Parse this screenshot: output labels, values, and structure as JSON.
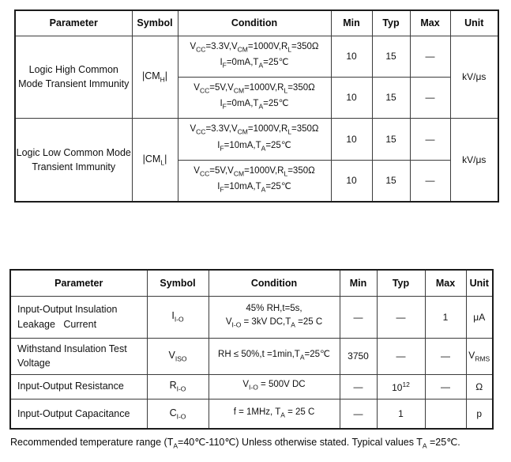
{
  "table1": {
    "headers": [
      "Parameter",
      "Symbol",
      "Condition",
      "Min",
      "Typ",
      "Max",
      "Unit"
    ],
    "groups": [
      {
        "parameter": "Logic High Common\nMode Transient Immunity",
        "symbol": [
          {
            "t": "|CM"
          },
          {
            "t": "H",
            "sub": true
          },
          {
            "t": "|"
          }
        ],
        "unit": "kV/μs",
        "subrows": [
          {
            "condition_line1": [
              {
                "t": "V"
              },
              {
                "t": "CC",
                "sub": true
              },
              {
                "t": "=3.3V,V"
              },
              {
                "t": "CM",
                "sub": true
              },
              {
                "t": "=1000V,R"
              },
              {
                "t": "L",
                "sub": true
              },
              {
                "t": "=350Ω"
              }
            ],
            "condition_line2": [
              {
                "t": "I"
              },
              {
                "t": "F",
                "sub": true
              },
              {
                "t": "=0mA,T"
              },
              {
                "t": "A",
                "sub": true
              },
              {
                "t": "=25℃"
              }
            ],
            "min": "10",
            "typ": "15",
            "max": "—"
          },
          {
            "condition_line1": [
              {
                "t": "V"
              },
              {
                "t": "CC",
                "sub": true
              },
              {
                "t": "=5V,V"
              },
              {
                "t": "CM",
                "sub": true
              },
              {
                "t": "=1000V,R"
              },
              {
                "t": "L",
                "sub": true
              },
              {
                "t": "=350Ω"
              }
            ],
            "condition_line2": [
              {
                "t": "I"
              },
              {
                "t": "F",
                "sub": true
              },
              {
                "t": "=0mA,T"
              },
              {
                "t": "A",
                "sub": true
              },
              {
                "t": "=25℃"
              }
            ],
            "min": "10",
            "typ": "15",
            "max": "—"
          }
        ]
      },
      {
        "parameter": "Logic Low Common Mode\nTransient Immunity",
        "symbol": [
          {
            "t": "|CM"
          },
          {
            "t": "L",
            "sub": true
          },
          {
            "t": "|"
          }
        ],
        "unit": "kV/μs",
        "subrows": [
          {
            "condition_line1": [
              {
                "t": "V"
              },
              {
                "t": "CC",
                "sub": true
              },
              {
                "t": "=3.3V,V"
              },
              {
                "t": "CM",
                "sub": true
              },
              {
                "t": "=1000V,R"
              },
              {
                "t": "L",
                "sub": true
              },
              {
                "t": "=350Ω"
              }
            ],
            "condition_line2": [
              {
                "t": "I"
              },
              {
                "t": "F",
                "sub": true
              },
              {
                "t": "=10mA,T"
              },
              {
                "t": "A",
                "sub": true
              },
              {
                "t": "=25℃"
              }
            ],
            "min": "10",
            "typ": "15",
            "max": "—"
          },
          {
            "condition_line1": [
              {
                "t": "V"
              },
              {
                "t": "CC",
                "sub": true
              },
              {
                "t": "=5V,V"
              },
              {
                "t": "CM",
                "sub": true
              },
              {
                "t": "=1000V,R"
              },
              {
                "t": "L",
                "sub": true
              },
              {
                "t": "=350Ω"
              }
            ],
            "condition_line2": [
              {
                "t": "I"
              },
              {
                "t": "F",
                "sub": true
              },
              {
                "t": "=10mA,T"
              },
              {
                "t": "A",
                "sub": true
              },
              {
                "t": "=25℃"
              }
            ],
            "min": "10",
            "typ": "15",
            "max": "—"
          }
        ]
      }
    ]
  },
  "table2": {
    "headers": [
      "Parameter",
      "Symbol",
      "Condition",
      "Min",
      "Typ",
      "Max",
      "Unit"
    ],
    "rows": [
      {
        "parameter": "Input-Output Insulation\nLeakage   Current",
        "symbol": [
          {
            "t": "I"
          },
          {
            "t": "I-O",
            "sub": true
          }
        ],
        "condition_line1": [
          {
            "t": "45% RH,t=5s,"
          }
        ],
        "condition_line2": [
          {
            "t": "V"
          },
          {
            "t": "I-O",
            "sub": true
          },
          {
            "t": " = 3kV DC,T"
          },
          {
            "t": "A",
            "sub": true
          },
          {
            "t": " =25 C"
          }
        ],
        "min": "—",
        "typ": "—",
        "max": "1",
        "unit": [
          {
            "t": "μA"
          }
        ]
      },
      {
        "parameter": "Withstand Insulation Test\nVoltage",
        "symbol": [
          {
            "t": "V"
          },
          {
            "t": "ISO",
            "sub": true
          }
        ],
        "condition_line1": [
          {
            "t": "RH ≤ 50%,t =1min,T"
          },
          {
            "t": "A",
            "sub": true
          },
          {
            "t": "=25℃"
          }
        ],
        "min": "3750",
        "typ": "—",
        "max": "—",
        "unit": [
          {
            "t": "V"
          },
          {
            "t": "RMS",
            "sub": true
          }
        ]
      },
      {
        "parameter": "Input-Output Resistance",
        "symbol": [
          {
            "t": "R"
          },
          {
            "t": "I-O",
            "sub": true
          }
        ],
        "condition_line1": [
          {
            "t": "V"
          },
          {
            "t": "I-O",
            "sub": true
          },
          {
            "t": " = 500V DC"
          }
        ],
        "min": "—",
        "typ": [
          {
            "t": "10"
          },
          {
            "t": "12",
            "sup": true
          }
        ],
        "max": "—",
        "unit": [
          {
            "t": "Ω"
          }
        ]
      },
      {
        "parameter": "Input-Output Capacitance",
        "symbol": [
          {
            "t": "C"
          },
          {
            "t": "I-O",
            "sub": true
          }
        ],
        "condition_line1": [
          {
            "t": "f = 1MHz, T"
          },
          {
            "t": "A",
            "sub": true
          },
          {
            "t": " = 25 C"
          }
        ],
        "min": "—",
        "typ": "1",
        "max": "",
        "unit": [
          {
            "t": "p"
          }
        ]
      }
    ]
  },
  "footer": {
    "note": [
      {
        "t": "Recommended temperature range (T"
      },
      {
        "t": "A",
        "sub": true
      },
      {
        "t": "=40℃-110℃) Unless otherwise stated. Typical values T"
      },
      {
        "t": "A",
        "sub": true
      },
      {
        "t": " =25℃."
      }
    ]
  },
  "colors": {
    "text": "#111111",
    "border_inner": "#3c3c3c",
    "border_outer": "#1c1c1c",
    "background": "#ffffff"
  }
}
